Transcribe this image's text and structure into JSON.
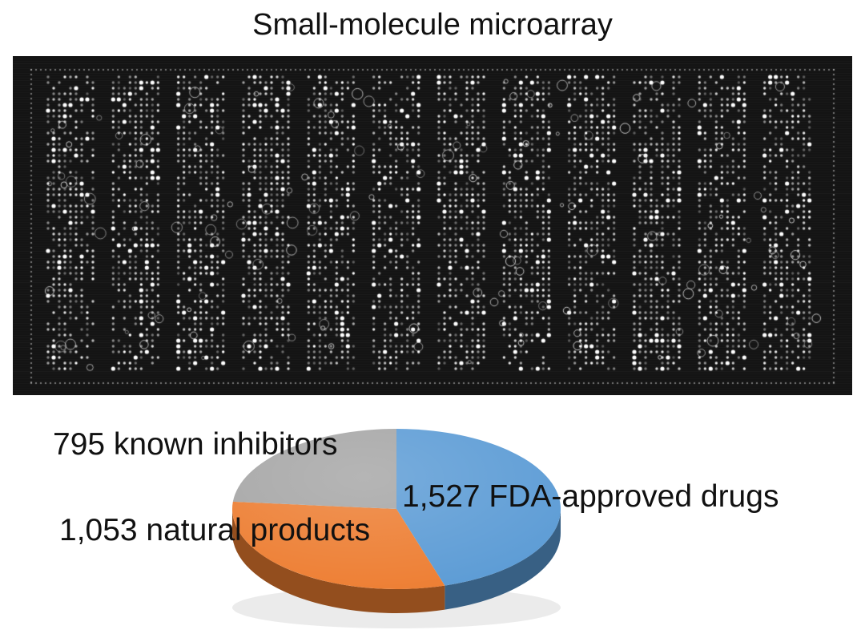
{
  "title": "Small-molecule microarray",
  "array_image": {
    "description_name": "microarray-scan",
    "background": "#141414"
  },
  "chart_data": {
    "type": "pie",
    "title": "",
    "slices": [
      {
        "label": "1,527 FDA-approved drugs",
        "value": 1527,
        "color": "#5b9bd5"
      },
      {
        "label": "1,053 natural products",
        "value": 1053,
        "color": "#ed7d31"
      },
      {
        "label": "795 known inhibitors",
        "value": 795,
        "color": "#a5a5a5"
      }
    ],
    "style": "3d-tilted",
    "legend": "none"
  }
}
